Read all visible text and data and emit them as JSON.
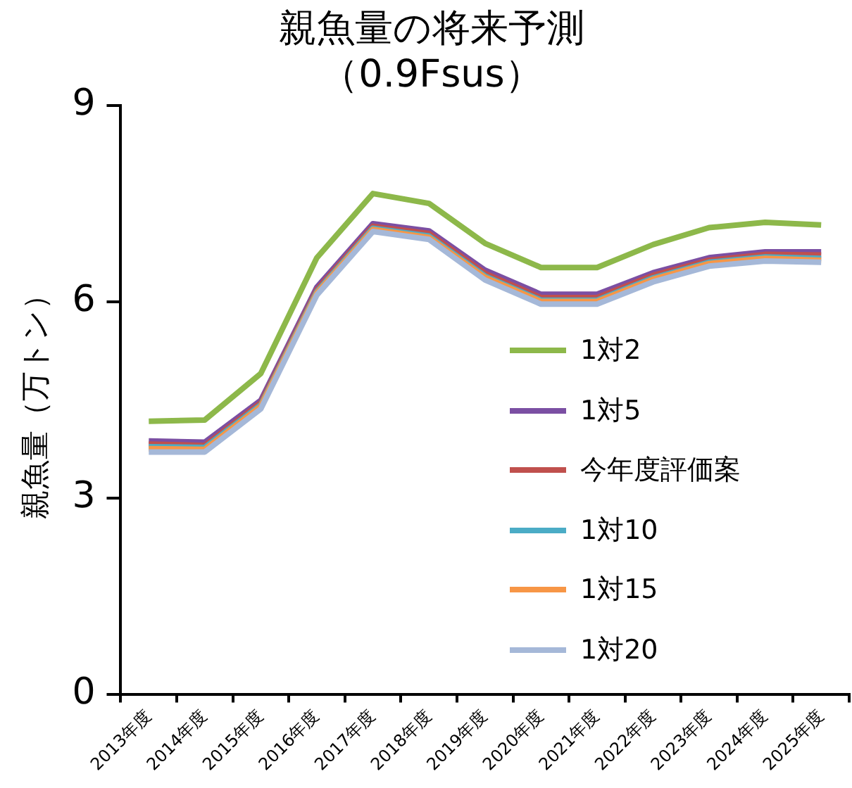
{
  "chart_data": {
    "type": "line",
    "title": "親魚量の将来予測",
    "subtitle": "（0.9Fsus）",
    "ylabel": "親魚量（万トン）",
    "categories": [
      "2013年度",
      "2014年度",
      "2015年度",
      "2016年度",
      "2017年度",
      "2018年度",
      "2019年度",
      "2020年度",
      "2021年度",
      "2022年度",
      "2023年度",
      "2024年度",
      "2025年度"
    ],
    "series": [
      {
        "name": "1対2",
        "color": "#8db84a",
        "values": [
          4.17,
          4.19,
          4.9,
          6.67,
          7.65,
          7.5,
          6.89,
          6.52,
          6.52,
          6.87,
          7.13,
          7.21,
          7.17
        ]
      },
      {
        "name": "1対5",
        "color": "#7b4fa3",
        "values": [
          3.87,
          3.85,
          4.49,
          6.22,
          7.19,
          7.08,
          6.48,
          6.11,
          6.11,
          6.44,
          6.67,
          6.76,
          6.76
        ]
      },
      {
        "name": "今年度評価案",
        "color": "#c0504d",
        "values": [
          3.82,
          3.8,
          4.45,
          6.18,
          7.15,
          7.04,
          6.43,
          6.06,
          6.06,
          6.4,
          6.63,
          6.72,
          6.71
        ]
      },
      {
        "name": "1対10",
        "color": "#4bacc6",
        "values": [
          3.78,
          3.77,
          4.42,
          6.15,
          7.12,
          7.0,
          6.39,
          6.02,
          6.02,
          6.36,
          6.6,
          6.68,
          6.66
        ]
      },
      {
        "name": "1対15",
        "color": "#f79646",
        "values": [
          3.75,
          3.74,
          4.4,
          6.13,
          7.1,
          6.98,
          6.37,
          6.0,
          6.0,
          6.34,
          6.58,
          6.66,
          6.63
        ]
      },
      {
        "name": "1対20",
        "color": "#a5b8d8",
        "values": [
          3.7,
          3.7,
          4.36,
          6.1,
          7.07,
          6.95,
          6.33,
          5.96,
          5.96,
          6.3,
          6.54,
          6.62,
          6.6
        ]
      }
    ],
    "ylim": [
      0,
      9
    ],
    "yticks": [
      0,
      3,
      6,
      9
    ],
    "grid": false,
    "legend": "right",
    "marker": "none",
    "line_style": "solid"
  }
}
